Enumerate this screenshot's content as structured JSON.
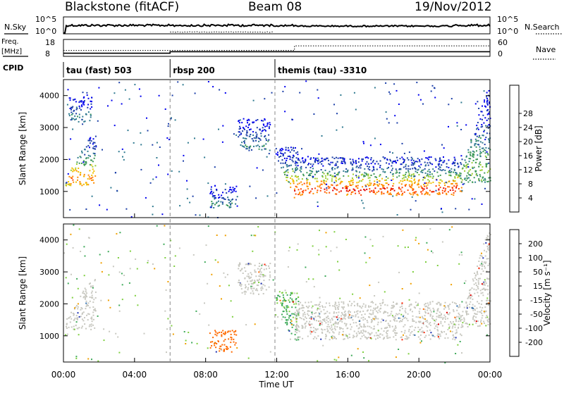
{
  "header": {
    "title": "Blackstone (fitACF)",
    "beam": "Beam 08",
    "date": "19/Nov/2012"
  },
  "noise_panel": {
    "left_label": "N.Sky",
    "right_label": "N.Search",
    "left_ticks": [
      "10^5",
      "10^0"
    ],
    "right_ticks": [
      "10^5",
      "10^0"
    ]
  },
  "freq_panel": {
    "left_label_top": "Freq.",
    "left_label_bottom": "[MHz]",
    "right_label": "Nave",
    "left_ticks": [
      "18",
      "8"
    ],
    "right_ticks": [
      "60",
      "0"
    ],
    "cpid_label": "CPID",
    "modes": [
      "tau (fast) 503",
      "rbsp 200",
      "themis (tau) -3310"
    ],
    "mode_change_hours": [
      6.0,
      11.9
    ]
  },
  "chart_data": [
    {
      "type": "heatmap",
      "panel": "power",
      "ylabel": "Slant Range [km]",
      "ylim": [
        180,
        4500
      ],
      "yticks": [
        1000,
        2000,
        3000,
        4000
      ],
      "xlim": [
        0,
        24
      ],
      "colorbar_label": "Power [dB]",
      "colorbar_ticks": [
        "4",
        "8",
        "12",
        "16",
        "20",
        "24",
        "28"
      ],
      "colors": [
        "#0000ee",
        "#1c3fa8",
        "#2f7a90",
        "#3f9a5a",
        "#9acd32",
        "#f0c000",
        "#ff8c00",
        "#ff4500",
        "#e00000"
      ],
      "regions": [
        {
          "t0": 0.1,
          "t1": 1.8,
          "r0": 1200,
          "r1": 2800,
          "peak_db": 24,
          "shape": "rising"
        },
        {
          "t0": 0.3,
          "t1": 1.6,
          "r0": 3200,
          "r1": 4000,
          "peak_db": 10
        },
        {
          "t0": 8.2,
          "t1": 9.7,
          "r0": 500,
          "r1": 1200,
          "peak_db": 10
        },
        {
          "t0": 9.8,
          "t1": 11.6,
          "r0": 2300,
          "r1": 3300,
          "peak_db": 10
        },
        {
          "t0": 11.9,
          "t1": 13.2,
          "r0": 800,
          "r1": 2400,
          "peak_db": 26,
          "shape": "falling"
        },
        {
          "t0": 13.0,
          "t1": 22.4,
          "r0": 900,
          "r1": 2100,
          "peak_db": 28
        },
        {
          "t0": 22.3,
          "t1": 24.0,
          "r0": 1300,
          "r1": 4300,
          "peak_db": 14,
          "shape": "rising"
        }
      ]
    },
    {
      "type": "heatmap",
      "panel": "velocity",
      "ylabel": "Slant Range [km]",
      "ylim": [
        180,
        4500
      ],
      "yticks": [
        1000,
        2000,
        3000,
        4000
      ],
      "xlim": [
        0,
        24
      ],
      "xlabel": "Time UT",
      "xticks": [
        "00:00",
        "04:00",
        "08:00",
        "12:00",
        "16:00",
        "20:00",
        "00:00"
      ],
      "colorbar_label": "Velocity [m s⁻¹]",
      "colorbar_ticks": [
        "200",
        "100",
        "50",
        "15",
        "-15",
        "-50",
        "-100",
        "-200"
      ],
      "colors": [
        "#1c2fb0",
        "#2f6fb0",
        "#3faa5a",
        "#7ecf3f",
        "#c8c8c0",
        "#f0a000",
        "#ff6a00",
        "#ff2000",
        "#e00000"
      ],
      "regions": [
        {
          "t0": 0.1,
          "t1": 1.8,
          "r0": 1200,
          "r1": 2800,
          "velocity": 0,
          "shape": "rising"
        },
        {
          "t0": 8.2,
          "t1": 9.7,
          "r0": 500,
          "r1": 1200,
          "velocity": -60
        },
        {
          "t0": 9.8,
          "t1": 11.6,
          "r0": 2300,
          "r1": 3300,
          "velocity": 0
        },
        {
          "t0": 11.9,
          "t1": 13.2,
          "r0": 800,
          "r1": 2400,
          "velocity": 40,
          "shape": "falling"
        },
        {
          "t0": 13.0,
          "t1": 22.4,
          "r0": 900,
          "r1": 2100,
          "velocity": 0
        },
        {
          "t0": 22.3,
          "t1": 24.0,
          "r0": 1300,
          "r1": 4300,
          "velocity": 0,
          "shape": "rising"
        }
      ]
    }
  ]
}
